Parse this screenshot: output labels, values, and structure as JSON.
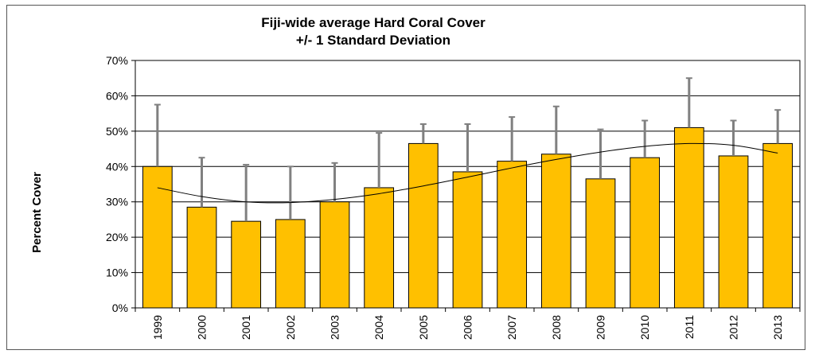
{
  "chart_data": {
    "type": "bar",
    "title": [
      "Fiji-wide average Hard Coral Cover",
      "+/- 1 Standard Deviation"
    ],
    "ylabel": "Percent Cover",
    "xlabel": "",
    "categories": [
      "1999",
      "2000",
      "2001",
      "2002",
      "2003",
      "2004",
      "2005",
      "2006",
      "2007",
      "2008",
      "2009",
      "2010",
      "2011",
      "2012",
      "2013"
    ],
    "values": [
      40,
      28.5,
      24.5,
      25,
      30,
      34,
      46.5,
      38.5,
      41.5,
      43.5,
      36.5,
      42.5,
      51,
      43,
      46.5
    ],
    "error_upper": [
      57.5,
      42.5,
      40.5,
      40,
      41,
      49.5,
      52,
      52,
      54,
      57,
      50.5,
      53,
      65,
      53,
      56
    ],
    "trendline": {
      "type": "polynomial",
      "x": [
        "1999",
        "2000",
        "2001",
        "2002",
        "2003",
        "2004",
        "2005",
        "2006",
        "2007",
        "2008",
        "2009",
        "2010",
        "2011",
        "2012",
        "2013"
      ],
      "y": [
        34,
        31.5,
        30,
        29.8,
        30.7,
        32.3,
        34.5,
        37,
        39.6,
        42,
        44.1,
        45.7,
        46.5,
        46,
        43.8
      ]
    },
    "ylim": [
      0,
      70
    ],
    "yticks": [
      "0%",
      "10%",
      "20%",
      "30%",
      "40%",
      "50%",
      "60%",
      "70%"
    ],
    "ytick_values": [
      0,
      10,
      20,
      30,
      40,
      50,
      60,
      70
    ],
    "grid": true,
    "colors": {
      "bar": "#FFC000",
      "bar_edge": "#000000",
      "error_bar": "#808080",
      "trend": "#000000"
    }
  }
}
